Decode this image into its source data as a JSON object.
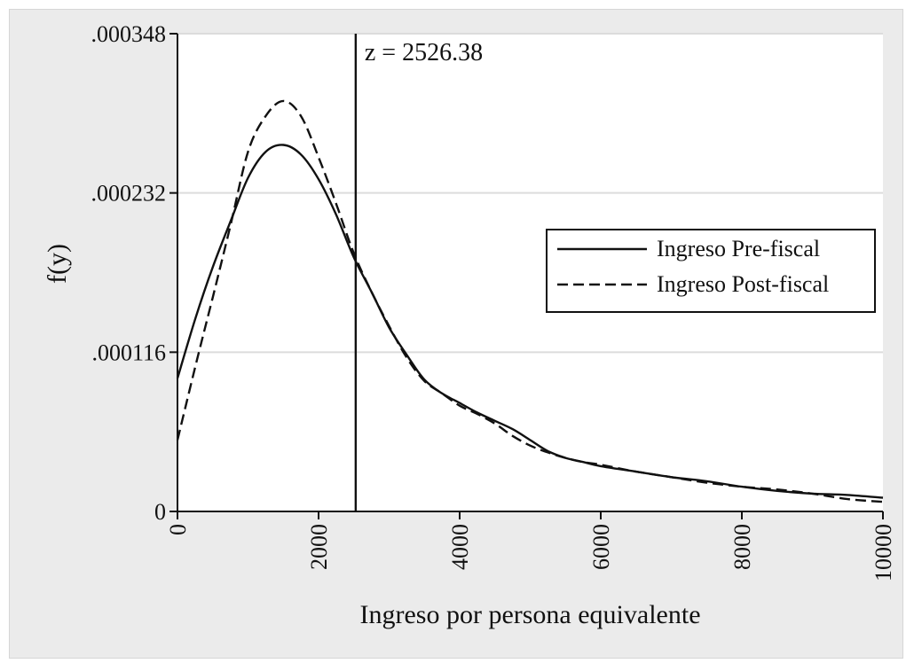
{
  "chart_data": {
    "type": "line",
    "title": "",
    "xlabel": "Ingreso por persona equivalente",
    "ylabel": "f(y)",
    "xlim": [
      0,
      10000
    ],
    "ylim": [
      0,
      0.000348
    ],
    "x_ticks": [
      0,
      2000,
      4000,
      6000,
      8000,
      10000
    ],
    "x_tick_labels": [
      "0",
      "2000",
      "4000",
      "6000",
      "8000",
      "10000"
    ],
    "y_ticks": [
      0,
      0.000116,
      0.000232,
      0.000348
    ],
    "y_tick_labels": [
      "0",
      ".000116",
      ".000232",
      ".000348"
    ],
    "grid": "horizontal",
    "legend_position": "right",
    "annotations": [
      {
        "type": "vline",
        "x": 2526.38,
        "label": "z = 2526.38"
      }
    ],
    "series": [
      {
        "name": "Ingreso Pre-fiscal",
        "style": "solid",
        "x": [
          0,
          250,
          500,
          750,
          1000,
          1250,
          1500,
          1750,
          2000,
          2250,
          2500,
          2750,
          3000,
          3250,
          3500,
          3750,
          4000,
          4250,
          4500,
          4750,
          5000,
          5250,
          5500,
          5750,
          6000,
          6500,
          7000,
          7500,
          8000,
          8500,
          9000,
          9500,
          10000
        ],
        "values": [
          9.7e-05,
          0.00014,
          0.000178,
          0.000211,
          0.000243,
          0.000262,
          0.000267,
          0.00026,
          0.000242,
          0.000216,
          0.000185,
          0.00016,
          0.000134,
          0.000114,
          9.6e-05,
          8.6e-05,
          7.9e-05,
          7.2e-05,
          6.6e-05,
          6e-05,
          5.2e-05,
          4.4e-05,
          3.9e-05,
          3.6e-05,
          3.3e-05,
          2.9e-05,
          2.5e-05,
          2.2e-05,
          1.8e-05,
          1.5e-05,
          1.3e-05,
          1.2e-05,
          1e-05
        ]
      },
      {
        "name": "Ingreso Post-fiscal",
        "style": "dashed",
        "x": [
          0,
          250,
          500,
          750,
          1000,
          1250,
          1500,
          1750,
          2000,
          2250,
          2500,
          2750,
          3000,
          3250,
          3500,
          3750,
          4000,
          4250,
          4500,
          4750,
          5000,
          5250,
          5500,
          5750,
          6000,
          6500,
          7000,
          7500,
          8000,
          8500,
          9000,
          9500,
          10000
        ],
        "values": [
          5.2e-05,
          0.000105,
          0.000156,
          0.000208,
          0.000262,
          0.000288,
          0.000299,
          0.000288,
          0.000258,
          0.000224,
          0.000188,
          0.00016,
          0.000135,
          0.000112,
          9.5e-05,
          8.6e-05,
          7.7e-05,
          7.1e-05,
          6.4e-05,
          5.5e-05,
          4.8e-05,
          4.3e-05,
          3.9e-05,
          3.6e-05,
          3.4e-05,
          2.9e-05,
          2.5e-05,
          2.1e-05,
          1.8e-05,
          1.6e-05,
          1.3e-05,
          9e-06,
          7e-06
        ]
      }
    ]
  },
  "colors": {
    "frame_bg": "#ebebeb",
    "plot_bg": "#ffffff",
    "grid": "#dcdcdc",
    "ink": "#111111"
  }
}
